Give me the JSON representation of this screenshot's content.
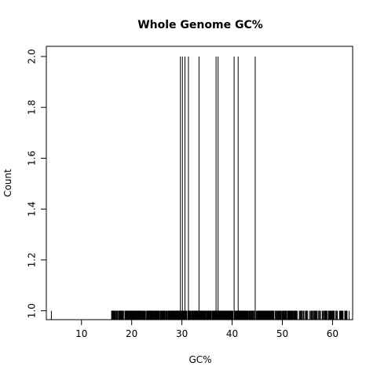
{
  "chart_data": {
    "type": "histogram-like",
    "title": "Whole Genome GC%",
    "xlabel": "GC%",
    "ylabel": "Count",
    "xlim": [
      3,
      64
    ],
    "ylim": [
      0.965,
      2.04
    ],
    "x_ticks": [
      10,
      20,
      30,
      40,
      50,
      60
    ],
    "y_ticks": [
      1.0,
      1.2,
      1.4,
      1.6,
      1.8,
      2.0
    ],
    "count_2": [
      29.7,
      30.1,
      30.6,
      31.3,
      33.4,
      36.8,
      37.2,
      40.4,
      41.2,
      44.6
    ],
    "count_1_range": [
      4.0,
      63.3
    ],
    "grid": false,
    "legend": "none"
  }
}
